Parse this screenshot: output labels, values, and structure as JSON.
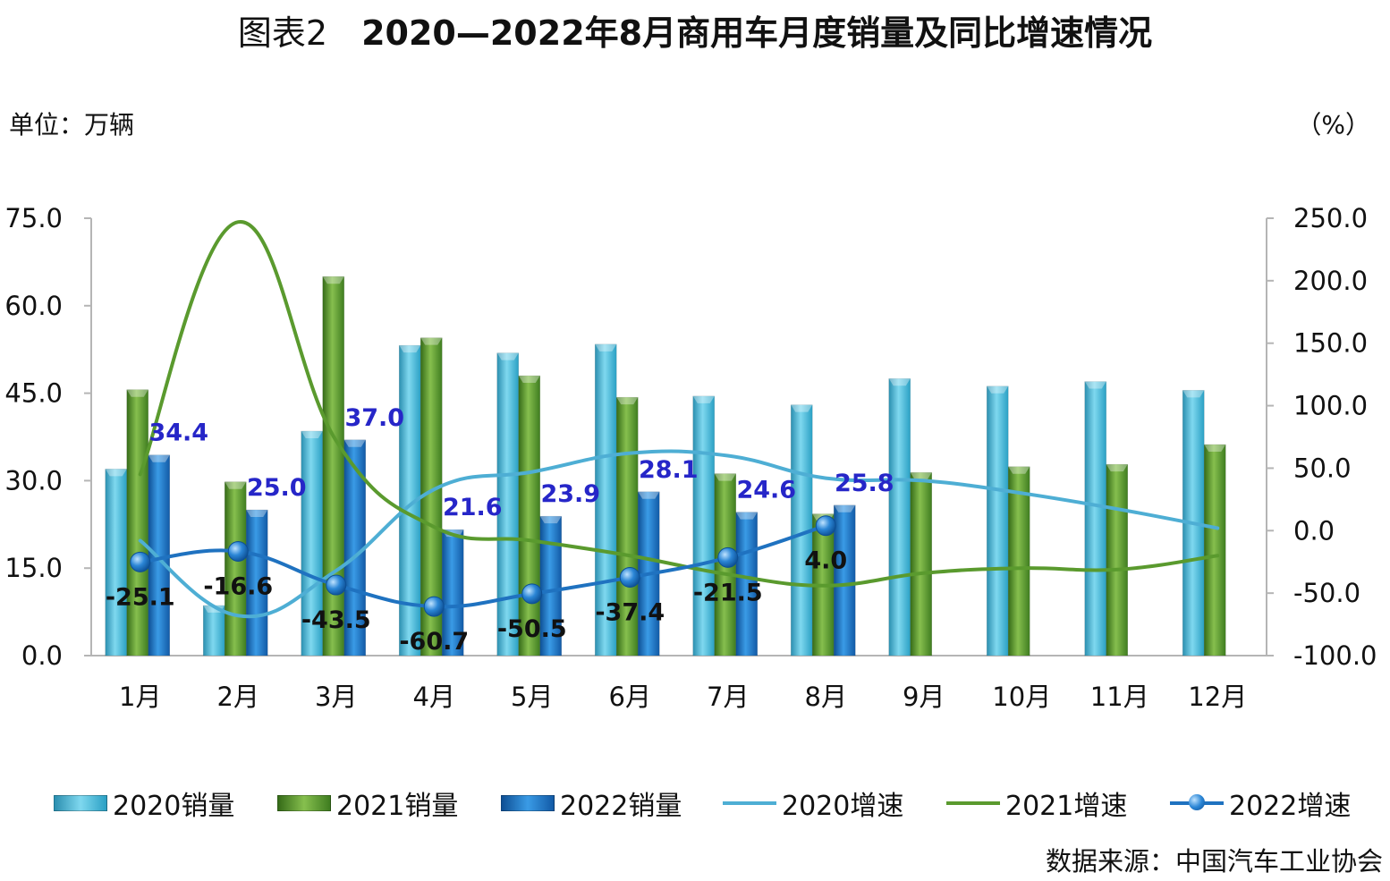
{
  "title_prefix": "图表2",
  "title_main": "2020—2022年8月商用车月度销量及同比增速情况",
  "unit_left": "单位：万辆",
  "unit_right": "（%）",
  "source": "数据来源：中国汽车工业协会",
  "chart_data": {
    "type": "bar",
    "categories": [
      "1月",
      "2月",
      "3月",
      "4月",
      "5月",
      "6月",
      "7月",
      "8月",
      "9月",
      "10月",
      "11月",
      "12月"
    ],
    "y_left": {
      "ylim": [
        0,
        75
      ],
      "ticks": [
        "0.0",
        "15.0",
        "30.0",
        "45.0",
        "60.0",
        "75.0"
      ]
    },
    "y_right": {
      "ylim": [
        -100,
        250
      ],
      "ticks": [
        "-100.0",
        "-50.0",
        "0.0",
        "50.0",
        "100.0",
        "150.0",
        "200.0",
        "250.0"
      ]
    },
    "bar_series": [
      {
        "name": "2020销量",
        "color": "#4fc3e0",
        "values": [
          32.0,
          8.6,
          38.5,
          53.2,
          51.9,
          53.4,
          44.5,
          43.0,
          47.5,
          46.2,
          47.0,
          45.5
        ]
      },
      {
        "name": "2021销量",
        "color": "#5d9830",
        "values": [
          45.6,
          29.8,
          65.0,
          54.5,
          48.0,
          44.3,
          31.2,
          24.3,
          31.4,
          32.4,
          32.8,
          36.2
        ]
      },
      {
        "name": "2022销量",
        "color": "#1f78c8",
        "values": [
          34.4,
          25.0,
          37.0,
          21.6,
          23.9,
          28.1,
          24.6,
          25.8
        ],
        "labels": [
          "34.4",
          "25.0",
          "37.0",
          "21.6",
          "23.9",
          "28.1",
          "24.6",
          "25.8"
        ]
      }
    ],
    "line_series": [
      {
        "name": "2020增速",
        "color": "#4eaed4",
        "axis": "right",
        "values": [
          -8,
          -68,
          -32,
          33,
          47,
          62,
          60,
          42,
          40,
          30,
          17,
          2
        ]
      },
      {
        "name": "2021增速",
        "color": "#5a9a2e",
        "axis": "right",
        "values": [
          45,
          247,
          72,
          3,
          -8,
          -20,
          -35,
          -44,
          -34,
          -30,
          -31,
          -20
        ]
      },
      {
        "name": "2022增速",
        "color": "#1f72c0",
        "axis": "right",
        "markers": true,
        "values": [
          -25.1,
          -16.6,
          -43.5,
          -60.7,
          -50.5,
          -37.4,
          -21.5,
          4.0
        ],
        "labels": [
          "-25.1",
          "-16.6",
          "-43.5",
          "-60.7",
          "-50.5",
          "-37.4",
          "-21.5",
          "4.0"
        ]
      }
    ],
    "legend": [
      "2020销量",
      "2021销量",
      "2022销量",
      "2020增速",
      "2021增速",
      "2022增速"
    ],
    "legend_position": "bottom",
    "grid": false
  }
}
